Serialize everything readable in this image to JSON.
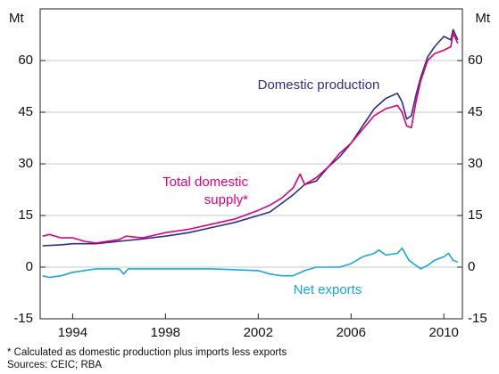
{
  "chart_data": {
    "type": "line",
    "ylabel": "Mt",
    "y2label": "Mt",
    "xlim": [
      1992.6,
      2010.8
    ],
    "xticks": [
      1994,
      1998,
      2002,
      2006,
      2010
    ],
    "ylim": [
      -15,
      75
    ],
    "yticks": [
      -15,
      0,
      15,
      30,
      45,
      60
    ],
    "y2lim": [
      -15,
      75
    ],
    "y2ticks": [
      -15,
      0,
      15,
      30,
      45,
      60
    ],
    "grid": true,
    "series": [
      {
        "name": "Domestic production",
        "color": "#2e2e8a",
        "x": [
          1992.7,
          1993.5,
          1994,
          1995,
          1996,
          1997,
          1998,
          1999,
          2000,
          2001,
          2002,
          2002.5,
          2003,
          2003.5,
          2004,
          2004.5,
          2005,
          2005.5,
          2006,
          2006.5,
          2007,
          2007.5,
          2008,
          2008.2,
          2008.4,
          2008.6,
          2008.8,
          2009,
          2009.3,
          2009.6,
          2010,
          2010.3,
          2010.4,
          2010.6
        ],
        "values": [
          6.2,
          6.5,
          6.8,
          6.8,
          7.5,
          8.2,
          9,
          10,
          11.5,
          13,
          15,
          16,
          18.5,
          21,
          24,
          25,
          29,
          32,
          36,
          41,
          46,
          49,
          50.5,
          48,
          43,
          44,
          50,
          55,
          61,
          64,
          67,
          66,
          69,
          66
        ]
      },
      {
        "name": "Total domestic supply*",
        "color": "#e0007a",
        "x": [
          1992.7,
          1993,
          1993.5,
          1994,
          1994.5,
          1995,
          1996,
          1996.3,
          1997,
          1998,
          1999,
          2000,
          2001,
          2002,
          2002.5,
          2003,
          2003.5,
          2003.8,
          2004,
          2004.5,
          2005,
          2005.5,
          2006,
          2006.5,
          2007,
          2007.5,
          2008,
          2008.2,
          2008.4,
          2008.6,
          2008.8,
          2009,
          2009.3,
          2009.6,
          2010,
          2010.3,
          2010.4,
          2010.6
        ],
        "values": [
          9,
          9.5,
          8.5,
          8.5,
          7.5,
          7,
          8,
          9,
          8.5,
          10,
          11,
          12.5,
          14,
          16.5,
          18,
          20,
          23,
          27,
          24,
          26,
          29,
          33,
          36,
          40,
          44,
          46,
          47,
          45,
          41,
          40.5,
          48,
          54,
          60,
          62,
          63,
          64,
          68,
          65
        ]
      },
      {
        "name": "Net exports",
        "color": "#1aa7e0",
        "x": [
          1992.7,
          1993,
          1993.5,
          1994,
          1995,
          1996,
          1996.2,
          1996.4,
          1998,
          2000,
          2002,
          2002.5,
          2003,
          2003.5,
          2004,
          2004.5,
          2005,
          2005.5,
          2006,
          2006.5,
          2007,
          2007.2,
          2007.5,
          2008,
          2008.2,
          2008.5,
          2008.8,
          2009,
          2009.3,
          2009.6,
          2010,
          2010.2,
          2010.4,
          2010.6
        ],
        "values": [
          -2.5,
          -3,
          -2.5,
          -1.5,
          -0.5,
          -0.5,
          -2,
          -0.5,
          -0.5,
          -0.5,
          -1,
          -2,
          -2.5,
          -2.5,
          -1,
          0,
          0,
          0,
          1,
          3,
          4,
          5,
          3.5,
          4,
          5.5,
          2,
          0.5,
          -0.5,
          0.5,
          2,
          3,
          4,
          2,
          1.5
        ]
      }
    ],
    "notes": [
      "*     Calculated as domestic production plus imports less exports",
      "Sources: CEIC; RBA"
    ]
  }
}
